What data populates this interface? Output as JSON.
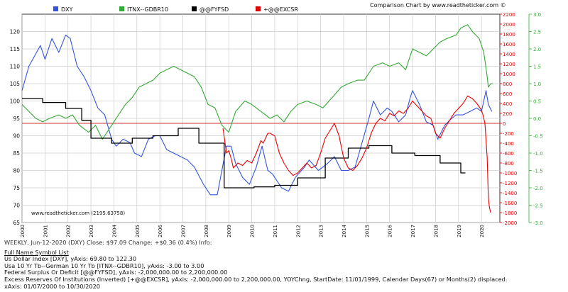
{
  "header": {
    "legend": [
      {
        "label": "DXY",
        "color": "#3355dd"
      },
      {
        "label": "ITNX--GDBR10",
        "color": "#33aa33"
      },
      {
        "label": "@@FYFSD",
        "color": "#000000"
      },
      {
        "label": "+@@EXCSR",
        "color": "#dd0000"
      }
    ],
    "chart_title": "Comparison Chart by www.readtheticker.com ©"
  },
  "watermark": "www.readtheticker.com (2195.63758)",
  "chart_data": {
    "type": "line",
    "x_range": [
      2000.0,
      2020.8
    ],
    "x_ticks": [
      "2000",
      "2001",
      "2002",
      "2003",
      "2004",
      "2005",
      "2006",
      "2007",
      "2008",
      "2009",
      "2010",
      "2011",
      "2012",
      "2013",
      "2014",
      "2015",
      "2016",
      "2017",
      "2018",
      "2019",
      "2020"
    ],
    "axes": {
      "left": {
        "min": 65,
        "max": 125,
        "ticks": [
          "65",
          "70",
          "75",
          "80",
          "85",
          "90",
          "95",
          "100",
          "105",
          "110",
          "115",
          "120"
        ]
      },
      "right_red": {
        "min": -2000,
        "max": 2200,
        "ticks": [
          "-2000",
          "-1800",
          "-1600",
          "-1400",
          "-1200",
          "-1000",
          "-800",
          "-600",
          "-400",
          "-200",
          "0",
          "200",
          "400",
          "600",
          "800",
          "1000",
          "1200",
          "1400",
          "1600",
          "1800",
          "2000",
          "2200"
        ],
        "color": "#dd0000"
      },
      "right_green": {
        "min": -3.0,
        "max": 3.0,
        "ticks": [
          "-3.0",
          "-2.5",
          "-2.0",
          "-1.5",
          "-1.0",
          "-0.5",
          "0.0",
          "0.5",
          "1.0",
          "1.5",
          "2.0",
          "2.5",
          "3.0"
        ],
        "color": "#33aa33"
      }
    },
    "zero_line": {
      "axis": "right_red",
      "value": 0,
      "color": "#cc3333"
    },
    "series": [
      {
        "name": "DXY",
        "axis": "left",
        "color": "#3355dd",
        "points": [
          [
            2000.0,
            103
          ],
          [
            2000.3,
            110
          ],
          [
            2000.8,
            116
          ],
          [
            2001.0,
            112
          ],
          [
            2001.3,
            118
          ],
          [
            2001.6,
            114
          ],
          [
            2001.9,
            119
          ],
          [
            2002.1,
            118
          ],
          [
            2002.4,
            110
          ],
          [
            2002.7,
            107
          ],
          [
            2003.0,
            103
          ],
          [
            2003.3,
            98
          ],
          [
            2003.6,
            96
          ],
          [
            2003.9,
            89
          ],
          [
            2004.1,
            87
          ],
          [
            2004.4,
            89
          ],
          [
            2004.7,
            88
          ],
          [
            2004.9,
            85
          ],
          [
            2005.2,
            84
          ],
          [
            2005.5,
            89
          ],
          [
            2005.8,
            90
          ],
          [
            2006.0,
            90
          ],
          [
            2006.3,
            86
          ],
          [
            2006.6,
            85
          ],
          [
            2006.9,
            84
          ],
          [
            2007.2,
            83
          ],
          [
            2007.5,
            81
          ],
          [
            2007.9,
            76
          ],
          [
            2008.2,
            73
          ],
          [
            2008.5,
            73
          ],
          [
            2008.7,
            80
          ],
          [
            2008.9,
            87
          ],
          [
            2009.1,
            87
          ],
          [
            2009.3,
            82
          ],
          [
            2009.6,
            78
          ],
          [
            2009.9,
            76
          ],
          [
            2010.2,
            81
          ],
          [
            2010.45,
            87
          ],
          [
            2010.7,
            80
          ],
          [
            2010.9,
            79
          ],
          [
            2011.3,
            75
          ],
          [
            2011.6,
            74
          ],
          [
            2011.9,
            78
          ],
          [
            2012.3,
            81
          ],
          [
            2012.5,
            83
          ],
          [
            2012.9,
            80
          ],
          [
            2013.3,
            82
          ],
          [
            2013.6,
            84
          ],
          [
            2013.9,
            80
          ],
          [
            2014.2,
            80
          ],
          [
            2014.5,
            81
          ],
          [
            2014.8,
            88
          ],
          [
            2015.1,
            95
          ],
          [
            2015.3,
            100
          ],
          [
            2015.6,
            96
          ],
          [
            2015.9,
            98
          ],
          [
            2016.1,
            97
          ],
          [
            2016.4,
            94
          ],
          [
            2016.7,
            96
          ],
          [
            2016.9,
            101
          ],
          [
            2017.0,
            103
          ],
          [
            2017.3,
            99
          ],
          [
            2017.6,
            94
          ],
          [
            2017.9,
            93
          ],
          [
            2018.1,
            89
          ],
          [
            2018.4,
            93
          ],
          [
            2018.7,
            95
          ],
          [
            2018.9,
            96
          ],
          [
            2019.2,
            96
          ],
          [
            2019.5,
            97
          ],
          [
            2019.8,
            98
          ],
          [
            2020.0,
            97
          ],
          [
            2020.2,
            103
          ],
          [
            2020.3,
            99
          ],
          [
            2020.45,
            97
          ]
        ]
      },
      {
        "name": "ITNX--GDBR10",
        "axis": "right_green",
        "color": "#33aa33",
        "points": [
          [
            2000.0,
            0.4
          ],
          [
            2000.3,
            0.2
          ],
          [
            2000.6,
            0.0
          ],
          [
            2000.9,
            -0.1
          ],
          [
            2001.2,
            0.0
          ],
          [
            2001.6,
            0.1
          ],
          [
            2001.9,
            0.0
          ],
          [
            2002.2,
            0.1
          ],
          [
            2002.5,
            -0.2
          ],
          [
            2002.9,
            -0.4
          ],
          [
            2003.2,
            -0.2
          ],
          [
            2003.5,
            -0.6
          ],
          [
            2003.9,
            -0.2
          ],
          [
            2004.2,
            0.1
          ],
          [
            2004.5,
            0.4
          ],
          [
            2004.8,
            0.6
          ],
          [
            2005.1,
            0.9
          ],
          [
            2005.4,
            1.0
          ],
          [
            2005.7,
            1.1
          ],
          [
            2006.0,
            1.3
          ],
          [
            2006.3,
            1.4
          ],
          [
            2006.6,
            1.5
          ],
          [
            2006.9,
            1.4
          ],
          [
            2007.2,
            1.3
          ],
          [
            2007.5,
            1.2
          ],
          [
            2007.8,
            0.9
          ],
          [
            2008.1,
            0.4
          ],
          [
            2008.4,
            0.3
          ],
          [
            2008.7,
            -0.2
          ],
          [
            2009.0,
            -0.4
          ],
          [
            2009.3,
            0.2
          ],
          [
            2009.7,
            0.5
          ],
          [
            2010.0,
            0.4
          ],
          [
            2010.4,
            0.2
          ],
          [
            2010.8,
            0.0
          ],
          [
            2011.1,
            0.1
          ],
          [
            2011.4,
            -0.1
          ],
          [
            2011.7,
            0.2
          ],
          [
            2012.0,
            0.4
          ],
          [
            2012.4,
            0.5
          ],
          [
            2012.8,
            0.4
          ],
          [
            2013.1,
            0.3
          ],
          [
            2013.5,
            0.6
          ],
          [
            2013.9,
            0.9
          ],
          [
            2014.2,
            1.0
          ],
          [
            2014.6,
            1.1
          ],
          [
            2014.9,
            1.1
          ],
          [
            2015.3,
            1.5
          ],
          [
            2015.7,
            1.6
          ],
          [
            2016.0,
            1.5
          ],
          [
            2016.4,
            1.6
          ],
          [
            2016.7,
            1.4
          ],
          [
            2017.0,
            2.0
          ],
          [
            2017.3,
            1.9
          ],
          [
            2017.6,
            1.8
          ],
          [
            2017.9,
            2.0
          ],
          [
            2018.2,
            2.2
          ],
          [
            2018.5,
            2.3
          ],
          [
            2018.9,
            2.4
          ],
          [
            2019.1,
            2.6
          ],
          [
            2019.4,
            2.7
          ],
          [
            2019.6,
            2.5
          ],
          [
            2019.9,
            2.3
          ],
          [
            2020.1,
            1.9
          ],
          [
            2020.25,
            1.2
          ],
          [
            2020.3,
            0.9
          ],
          [
            2020.4,
            1.0
          ],
          [
            2020.5,
            1.0
          ]
        ]
      },
      {
        "name": "@@FYFSD",
        "axis": "right_red",
        "color": "#000000",
        "step": true,
        "points": [
          [
            2000.0,
            500
          ],
          [
            2000.9,
            500
          ],
          [
            2000.9,
            420
          ],
          [
            2001.9,
            420
          ],
          [
            2001.9,
            300
          ],
          [
            2002.6,
            300
          ],
          [
            2002.6,
            60
          ],
          [
            2003.0,
            60
          ],
          [
            2003.0,
            -300
          ],
          [
            2003.9,
            -300
          ],
          [
            2003.9,
            -400
          ],
          [
            2004.8,
            -400
          ],
          [
            2004.8,
            -300
          ],
          [
            2005.7,
            -300
          ],
          [
            2005.7,
            -250
          ],
          [
            2006.8,
            -250
          ],
          [
            2006.8,
            -100
          ],
          [
            2007.7,
            -100
          ],
          [
            2007.7,
            -400
          ],
          [
            2008.8,
            -400
          ],
          [
            2008.8,
            -1300
          ],
          [
            2009.1,
            -1300
          ],
          [
            2009.1,
            -1300
          ],
          [
            2010.1,
            -1300
          ],
          [
            2010.1,
            -1280
          ],
          [
            2011.0,
            -1280
          ],
          [
            2011.0,
            -1250
          ],
          [
            2012.0,
            -1250
          ],
          [
            2012.0,
            -1100
          ],
          [
            2013.2,
            -1100
          ],
          [
            2013.2,
            -700
          ],
          [
            2014.2,
            -700
          ],
          [
            2014.2,
            -500
          ],
          [
            2015.1,
            -500
          ],
          [
            2015.1,
            -450
          ],
          [
            2016.1,
            -450
          ],
          [
            2016.1,
            -600
          ],
          [
            2017.1,
            -600
          ],
          [
            2017.1,
            -650
          ],
          [
            2018.2,
            -650
          ],
          [
            2018.2,
            -800
          ],
          [
            2019.1,
            -800
          ],
          [
            2019.1,
            -1000
          ],
          [
            2019.3,
            -1000
          ]
        ]
      },
      {
        "name": "+@@EXCSR",
        "axis": "right_red",
        "color": "#ee0000",
        "points": [
          [
            2008.75,
            -100
          ],
          [
            2008.9,
            -600
          ],
          [
            2009.0,
            -550
          ],
          [
            2009.1,
            -700
          ],
          [
            2009.2,
            -900
          ],
          [
            2009.4,
            -800
          ],
          [
            2009.6,
            -850
          ],
          [
            2009.8,
            -750
          ],
          [
            2010.0,
            -800
          ],
          [
            2010.2,
            -600
          ],
          [
            2010.4,
            -350
          ],
          [
            2010.5,
            -400
          ],
          [
            2010.7,
            -200
          ],
          [
            2010.8,
            -200
          ],
          [
            2011.0,
            -250
          ],
          [
            2011.2,
            -600
          ],
          [
            2011.4,
            -800
          ],
          [
            2011.6,
            -950
          ],
          [
            2011.8,
            -1050
          ],
          [
            2012.0,
            -1000
          ],
          [
            2012.2,
            -900
          ],
          [
            2012.4,
            -800
          ],
          [
            2012.6,
            -900
          ],
          [
            2012.8,
            -850
          ],
          [
            2013.0,
            -600
          ],
          [
            2013.2,
            -300
          ],
          [
            2013.4,
            -150
          ],
          [
            2013.6,
            0
          ],
          [
            2013.8,
            -250
          ],
          [
            2014.0,
            -700
          ],
          [
            2014.2,
            -900
          ],
          [
            2014.4,
            -950
          ],
          [
            2014.6,
            -850
          ],
          [
            2014.8,
            -700
          ],
          [
            2015.0,
            -500
          ],
          [
            2015.2,
            -200
          ],
          [
            2015.4,
            0
          ],
          [
            2015.6,
            100
          ],
          [
            2015.8,
            50
          ],
          [
            2016.0,
            200
          ],
          [
            2016.2,
            150
          ],
          [
            2016.4,
            250
          ],
          [
            2016.6,
            200
          ],
          [
            2016.8,
            300
          ],
          [
            2017.0,
            450
          ],
          [
            2017.2,
            350
          ],
          [
            2017.4,
            250
          ],
          [
            2017.6,
            150
          ],
          [
            2017.8,
            100
          ],
          [
            2018.0,
            -200
          ],
          [
            2018.2,
            -300
          ],
          [
            2018.4,
            -100
          ],
          [
            2018.6,
            50
          ],
          [
            2018.8,
            200
          ],
          [
            2019.0,
            300
          ],
          [
            2019.2,
            400
          ],
          [
            2019.4,
            550
          ],
          [
            2019.6,
            500
          ],
          [
            2019.8,
            400
          ],
          [
            2019.95,
            300
          ],
          [
            2020.05,
            200
          ],
          [
            2020.15,
            0
          ],
          [
            2020.25,
            -700
          ],
          [
            2020.3,
            -1500
          ],
          [
            2020.35,
            -1700
          ],
          [
            2020.4,
            -1800
          ]
        ]
      }
    ]
  },
  "footer": {
    "status_line": "WEEKLY, Jun-12-2020 (DXY) Close: $97.09 Change: +$0.36 (0.4%)   Info:",
    "list_title": "Full Name Symbol List",
    "lines": [
      "Us Dollar Index [DXY], yAxis: 69.80 to 122.30",
      "Usa 10 Yr Tb--German 10 Yr Tb [ITNX--GDBR10], yAxis: -3.00 to 3.00",
      "Federal Surplus Or Deficit [@@FYFSD], yAxis: -2,000,000.00 to 2,200,000.00",
      "Excess Reserves Of Institutions (Inverted) [+@@EXCSR], yAxis: -2,000,000.00 to 2,200,000.00, YOYChng, StartDate: 11/01/1999, Calendar Days(67) or Months(2) displaced.",
      "xAxis: 01/07/2000 to 10/30/2020"
    ]
  }
}
